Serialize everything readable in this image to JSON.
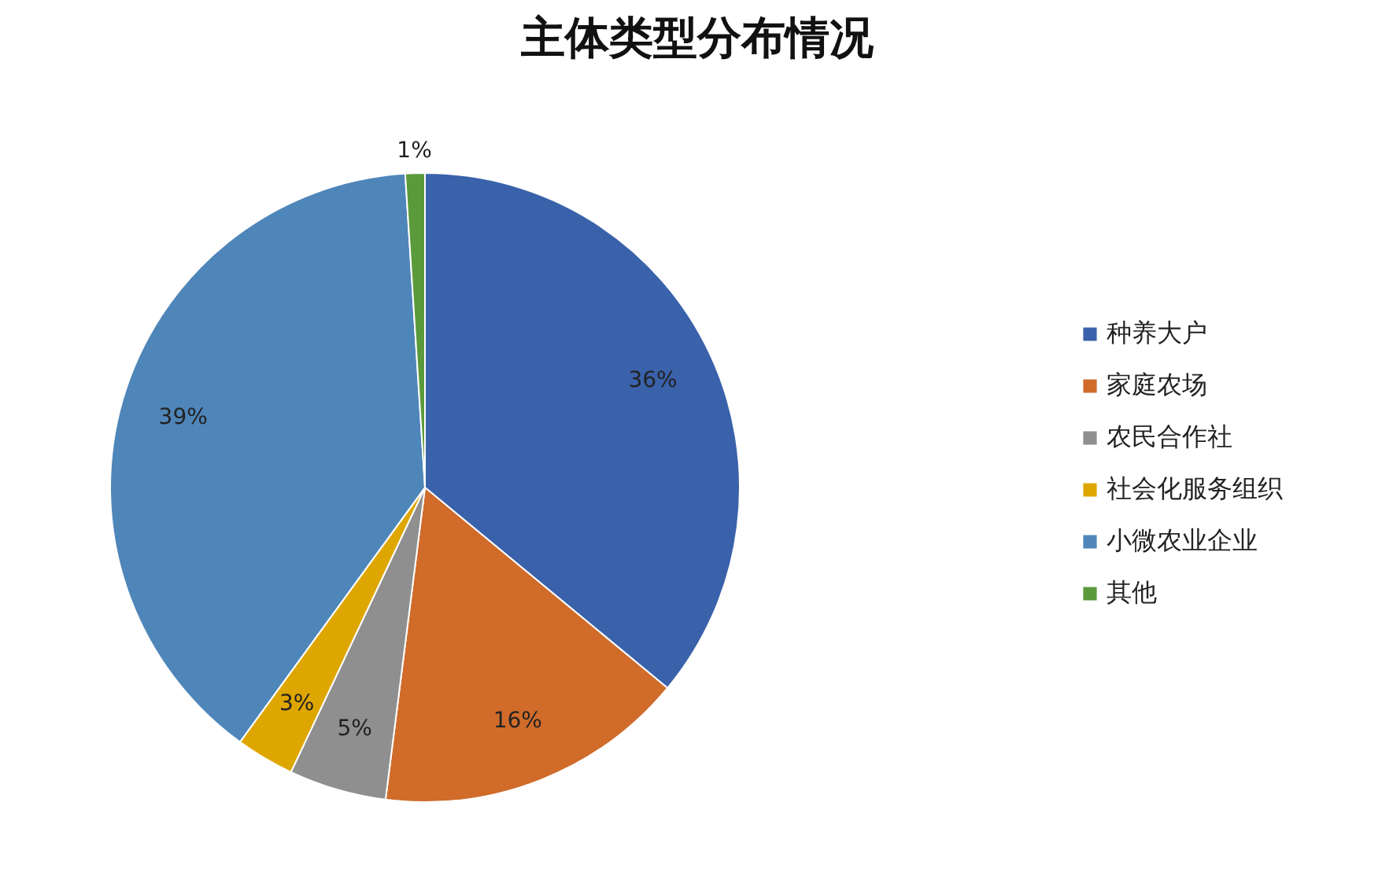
{
  "chart_data": {
    "type": "pie",
    "title": "主体类型分布情况",
    "categories": [
      "种养大户",
      "家庭农场",
      "农民合作社",
      "社会化服务组织",
      "小微农业企业",
      "其他"
    ],
    "values": [
      36,
      16,
      5,
      3,
      39,
      1
    ],
    "colors": [
      "#3a62ab",
      "#d06b2a",
      "#8f8f8f",
      "#dea600",
      "#4f86b9",
      "#5a9a3b"
    ],
    "value_labels": [
      "36%",
      "16%",
      "5%",
      "3%",
      "39%",
      "1%"
    ],
    "legend": "right"
  }
}
